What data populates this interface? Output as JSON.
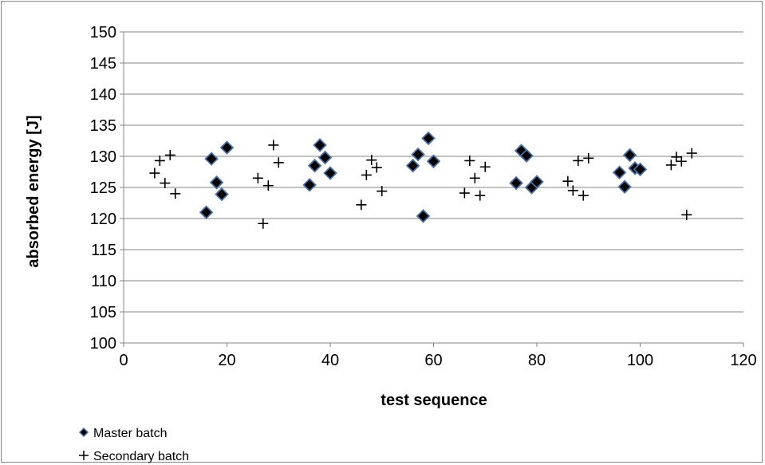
{
  "chart_data": {
    "type": "scatter",
    "title": "",
    "xlabel": "test sequence",
    "ylabel": "absorbed energy [J]",
    "xlim": [
      0,
      120
    ],
    "ylim": [
      100,
      150
    ],
    "xticks": [
      0,
      20,
      40,
      60,
      80,
      100,
      120
    ],
    "yticks": [
      100,
      105,
      110,
      115,
      120,
      125,
      130,
      135,
      140,
      145,
      150
    ],
    "grid": "horizontal",
    "legend_position": "bottom-left",
    "series": [
      {
        "name": "Master batch",
        "marker": "diamond",
        "color": "#000000",
        "edge_color": "#4a6fa5",
        "points": [
          [
            16,
            121
          ],
          [
            17,
            129.6
          ],
          [
            18,
            125.8
          ],
          [
            19,
            123.9
          ],
          [
            20,
            131.4
          ],
          [
            36,
            125.4
          ],
          [
            37,
            128.5
          ],
          [
            38,
            131.8
          ],
          [
            39,
            129.8
          ],
          [
            40,
            127.3
          ],
          [
            56,
            128.5
          ],
          [
            57,
            130.3
          ],
          [
            58,
            120.4
          ],
          [
            59,
            132.9
          ],
          [
            60,
            129.2
          ],
          [
            76,
            125.7
          ],
          [
            77,
            130.9
          ],
          [
            78,
            130.1
          ],
          [
            79,
            125
          ],
          [
            80,
            125.9
          ],
          [
            96,
            127.4
          ],
          [
            97,
            125.1
          ],
          [
            98,
            130.2
          ],
          [
            99,
            128.1
          ],
          [
            100,
            127.9
          ]
        ]
      },
      {
        "name": "Secondary batch",
        "marker": "plus",
        "color": "#000000",
        "points": [
          [
            6,
            127.3
          ],
          [
            7,
            129.3
          ],
          [
            8,
            125.7
          ],
          [
            9,
            130.2
          ],
          [
            10,
            124
          ],
          [
            26,
            126.5
          ],
          [
            27,
            119.2
          ],
          [
            28,
            125.3
          ],
          [
            29,
            131.8
          ],
          [
            30,
            129
          ],
          [
            46,
            122.2
          ],
          [
            47,
            127
          ],
          [
            48,
            129.4
          ],
          [
            49,
            128.2
          ],
          [
            50,
            124.4
          ],
          [
            66,
            124.1
          ],
          [
            67,
            129.3
          ],
          [
            68,
            126.5
          ],
          [
            69,
            123.7
          ],
          [
            70,
            128.3
          ],
          [
            86,
            126
          ],
          [
            87,
            124.5
          ],
          [
            88,
            129.3
          ],
          [
            89,
            123.7
          ],
          [
            90,
            129.7
          ],
          [
            106,
            128.6
          ],
          [
            107,
            129.9
          ],
          [
            108,
            129.2
          ],
          [
            109,
            120.6
          ],
          [
            110,
            130.5
          ]
        ]
      }
    ]
  }
}
